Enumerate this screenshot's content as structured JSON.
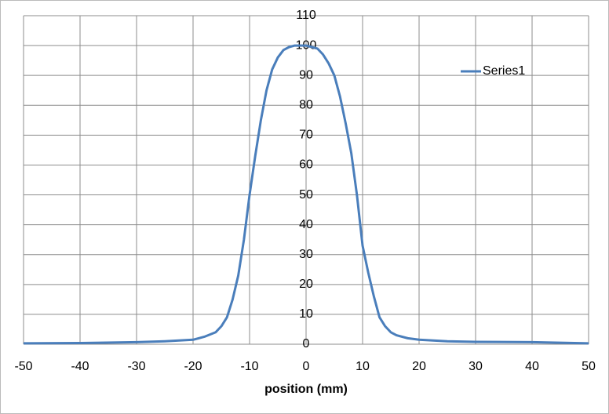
{
  "chart_data": {
    "type": "line",
    "x_label": "position  (mm)",
    "x": [
      -50,
      -40,
      -30,
      -25,
      -20,
      -18,
      -16,
      -15,
      -14,
      -13,
      -12,
      -11,
      -10,
      -9,
      -8,
      -7,
      -6,
      -5,
      -4,
      -3,
      -2,
      -1,
      0,
      1,
      2,
      3,
      4,
      5,
      6,
      7,
      8,
      9,
      10,
      11,
      12,
      13,
      14,
      15,
      16,
      18,
      20,
      25,
      30,
      40,
      45,
      50
    ],
    "series": [
      {
        "name": "Series1",
        "color": "#4a7ebb",
        "values": [
          0.3,
          0.4,
          0.7,
          1,
          1.5,
          2.5,
          4,
          6,
          9,
          15,
          23,
          35,
          50,
          63,
          75,
          85,
          92,
          96,
          98.5,
          99.5,
          100,
          100,
          100,
          99.5,
          99,
          97,
          94,
          90,
          83,
          74,
          64,
          50,
          33,
          24,
          16,
          9,
          6,
          4,
          3,
          2,
          1.5,
          1,
          0.8,
          0.7,
          0.5,
          0.3
        ]
      }
    ],
    "xlim": [
      -50,
      50
    ],
    "ylim": [
      0,
      110
    ],
    "xticks": [
      -50,
      -40,
      -30,
      -20,
      -10,
      0,
      10,
      20,
      30,
      40,
      50
    ],
    "yticks": [
      0,
      10,
      20,
      30,
      40,
      50,
      60,
      70,
      80,
      90,
      100,
      110
    ],
    "grid": true
  }
}
